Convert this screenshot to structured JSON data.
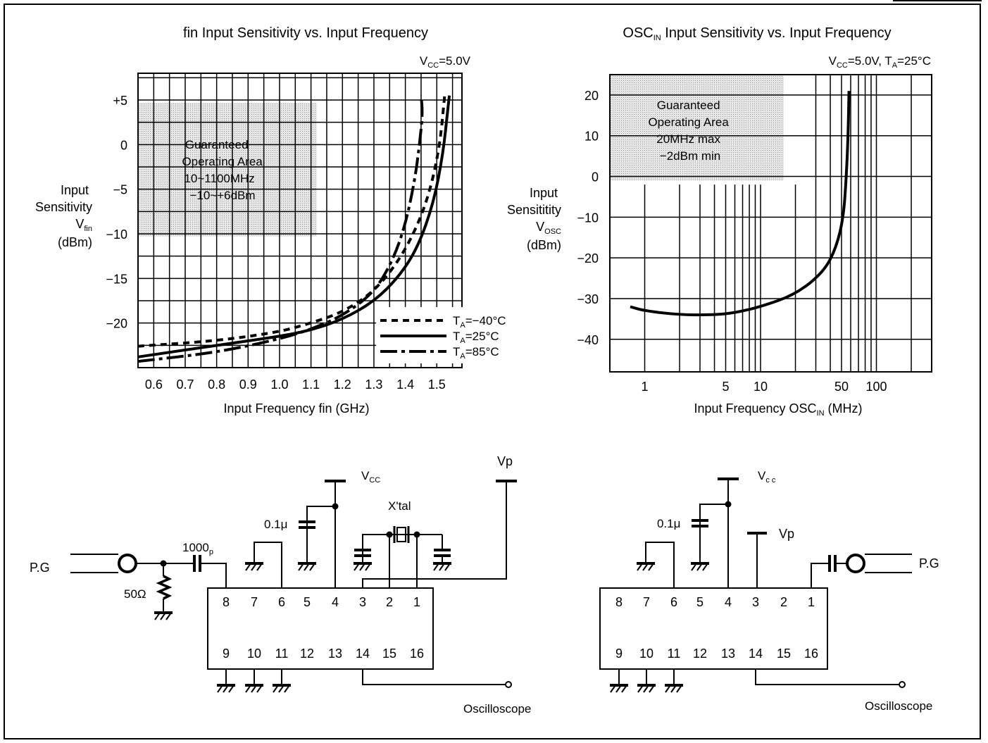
{
  "charts": [
    {
      "title_pre": "fin Input Sensitivity vs. Input Frequency",
      "condition": {
        "v": "V",
        "vsub": "CC",
        "rest": "=5.0V"
      },
      "ylabel_lines": [
        "Input",
        "Sensitivity"
      ],
      "ylabel_sym": {
        "v": "V",
        "vsub": "fin"
      },
      "ylabel_unit": "(dBm)",
      "xlabel": "Input Frequency fin (GHz)",
      "guaranteed": [
        "Guaranteed",
        "Operating Area",
        "10~1100MHz",
        "−10~+6dBm"
      ],
      "legend": [
        {
          "label_pre": "T",
          "label_sub": "A",
          "label_post": "=−40°C"
        },
        {
          "label_pre": "T",
          "label_sub": "A",
          "label_post": "=25°C"
        },
        {
          "label_pre": "T",
          "label_sub": "A",
          "label_post": "=85°C"
        }
      ],
      "xticks": [
        "0.6",
        "0.7",
        "0.8",
        "0.9",
        "1.0",
        "1.1",
        "1.2",
        "1.3",
        "1.4",
        "1.5"
      ],
      "yticks": [
        "+5",
        "0",
        "−5",
        "−10",
        "−15",
        "−20"
      ]
    },
    {
      "title_pre": "OSC",
      "title_sub": "IN",
      "title_post": " Input Sensitivity vs. Input Frequency",
      "condition": {
        "v": "V",
        "vsub": "CC",
        "rest": "=5.0V, T",
        "tsub": "A",
        "trest": "=25°C"
      },
      "ylabel_lines": [
        "Input",
        "Sensititity"
      ],
      "ylabel_sym": {
        "v": "V",
        "vsub": "OSC"
      },
      "ylabel_unit": "(dBm)",
      "xlabel_pre": "Input Frequency OSC",
      "xlabel_sub": "IN",
      "xlabel_post": " (MHz)",
      "guaranteed": [
        "Guaranteed",
        "Operating Area",
        "20MHz max",
        "−2dBm min"
      ],
      "xticks": [
        "1",
        "5",
        "10",
        "50",
        "100"
      ],
      "yticks": [
        "20",
        "10",
        "0",
        "−10",
        "−20",
        "−30",
        "−40"
      ]
    }
  ],
  "chart_data": [
    {
      "type": "line",
      "title": "fin Input Sensitivity vs. Input Frequency",
      "xlabel": "Input Frequency fin (GHz)",
      "ylabel": "Input Sensitivity Vfin (dBm)",
      "xlim": [
        0.55,
        1.58
      ],
      "ylim": [
        -25,
        8
      ],
      "grid": true,
      "legend_position": "bottom-right",
      "guaranteed_area": {
        "x": [
          0.01,
          1.1
        ],
        "y": [
          -10,
          6
        ]
      },
      "series": [
        {
          "name": "TA=−40°C",
          "style": "dashed",
          "points": [
            [
              0.55,
              -22.6
            ],
            [
              0.8,
              -22
            ],
            [
              1.0,
              -21
            ],
            [
              1.1,
              -20
            ],
            [
              1.2,
              -18.8
            ],
            [
              1.3,
              -16.5
            ],
            [
              1.38,
              -13
            ],
            [
              1.44,
              -9
            ],
            [
              1.48,
              -5
            ],
            [
              1.51,
              0
            ],
            [
              1.525,
              5.5
            ]
          ]
        },
        {
          "name": "TA=25°C",
          "style": "solid",
          "points": [
            [
              0.55,
              -23.8
            ],
            [
              0.8,
              -22.5
            ],
            [
              1.0,
              -21.5
            ],
            [
              1.1,
              -20.8
            ],
            [
              1.2,
              -19.6
            ],
            [
              1.3,
              -17.6
            ],
            [
              1.38,
              -14.8
            ],
            [
              1.44,
              -11.5
            ],
            [
              1.49,
              -6.5
            ],
            [
              1.52,
              -1
            ],
            [
              1.535,
              4
            ],
            [
              1.54,
              5.5
            ]
          ]
        },
        {
          "name": "TA=85°C",
          "style": "dash-dot",
          "points": [
            [
              0.55,
              -24.3
            ],
            [
              0.8,
              -23.3
            ],
            [
              1.0,
              -21.8
            ],
            [
              1.1,
              -20.7
            ],
            [
              1.2,
              -19.2
            ],
            [
              1.3,
              -16.6
            ],
            [
              1.36,
              -13
            ],
            [
              1.4,
              -9
            ],
            [
              1.43,
              -4
            ],
            [
              1.445,
              0
            ],
            [
              1.455,
              3.5
            ],
            [
              1.45,
              5.5
            ]
          ]
        }
      ]
    },
    {
      "type": "line",
      "title": "OSCIN Input Sensitivity vs. Input Frequency",
      "xlabel": "Input Frequency OSCIN (MHz)",
      "ylabel": "Input Sensititity Vosc (dBm)",
      "xscale": "log",
      "xlim": [
        0.5,
        300
      ],
      "ylim": [
        -48,
        25
      ],
      "grid": true,
      "guaranteed_area": {
        "x": [
          0.5,
          20
        ],
        "y": [
          -2,
          25
        ]
      },
      "series": [
        {
          "name": "",
          "style": "solid",
          "points": [
            [
              0.75,
              -32
            ],
            [
              1,
              -33
            ],
            [
              2,
              -34
            ],
            [
              4,
              -34
            ],
            [
              6,
              -33.5
            ],
            [
              10,
              -32
            ],
            [
              20,
              -29
            ],
            [
              35,
              -23.5
            ],
            [
              45,
              -17.5
            ],
            [
              52,
              -10
            ],
            [
              55,
              0
            ],
            [
              57,
              10
            ],
            [
              58,
              21
            ]
          ]
        }
      ]
    }
  ],
  "circuits": [
    {
      "pins_top": [
        "8",
        "7",
        "6",
        "5",
        "4",
        "3",
        "2",
        "1"
      ],
      "pins_bottom": [
        "9",
        "10",
        "11",
        "12",
        "13",
        "14",
        "15",
        "16"
      ],
      "vcc": {
        "v": "V",
        "sub": "CC"
      },
      "vp": "Vp",
      "cap_label": "0.1μ",
      "coupling_cap": {
        "main": "1000",
        "sub": "p"
      },
      "resistor": "50Ω",
      "crystal": "X'tal",
      "pg": "P.G",
      "scope": "Oscilloscope"
    },
    {
      "pins_top": [
        "8",
        "7",
        "6",
        "5",
        "4",
        "3",
        "2",
        "1"
      ],
      "pins_bottom": [
        "9",
        "10",
        "11",
        "12",
        "13",
        "14",
        "15",
        "16"
      ],
      "vcc": {
        "v": "V",
        "sub": "c c"
      },
      "vp": "Vp",
      "cap_label": "0.1μ",
      "pg": "P.G",
      "scope": "Oscilloscope"
    }
  ]
}
